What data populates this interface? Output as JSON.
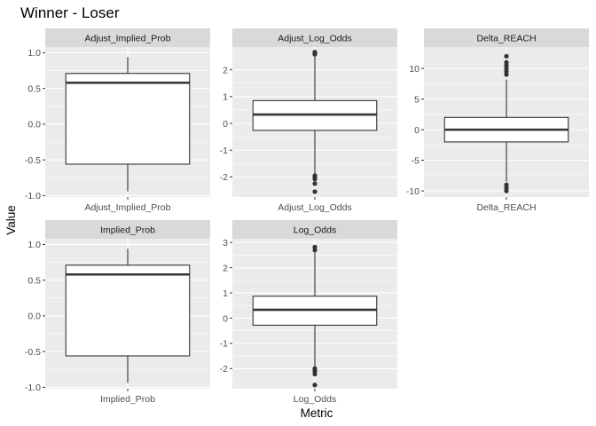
{
  "chart_data": {
    "type": "boxplot",
    "title": "Winner - Loser",
    "xlabel": "Metric",
    "ylabel": "Value",
    "layout": "facet-wrap",
    "panel_background": "#ebebeb",
    "strip_background": "#d9d9d9",
    "gridline_color": "#ffffff",
    "box_fill": "#ffffff",
    "box_stroke": "#333333",
    "panels": [
      {
        "strip": "Adjust_Implied_Prob",
        "category": "Adjust_Implied_Prob",
        "ylim": [
          -1.02,
          1.08
        ],
        "yticks": [
          -1.0,
          -0.5,
          0.0,
          0.5,
          1.0
        ],
        "yticklabels": [
          "-1.0",
          "-0.5",
          "0.0",
          "0.5",
          "1.0"
        ],
        "box": {
          "lower_whisker": -0.94,
          "q1": -0.56,
          "median": 0.58,
          "q3": 0.71,
          "upper_whisker": 0.94
        },
        "outliers": []
      },
      {
        "strip": "Adjust_Log_Odds",
        "category": "Adjust_Log_Odds",
        "ylim": [
          -2.75,
          2.85
        ],
        "yticks": [
          -2,
          -1,
          0,
          1,
          2
        ],
        "yticklabels": [
          "-2",
          "-1",
          "0",
          "1",
          "2"
        ],
        "box": {
          "lower_whisker": -1.9,
          "q1": -0.26,
          "median": 0.33,
          "q3": 0.85,
          "upper_whisker": 2.5
        },
        "outliers": [
          2.58,
          2.63,
          2.66,
          -1.95,
          -2.02,
          -2.08,
          -2.25,
          -2.55
        ]
      },
      {
        "strip": "Delta_REACH",
        "category": "Delta_REACH",
        "ylim": [
          -11,
          13.5
        ],
        "yticks": [
          -10,
          -5,
          0,
          5,
          10
        ],
        "yticklabels": [
          "-10",
          "-5",
          "0",
          "5",
          "10"
        ],
        "box": {
          "lower_whisker": -8.5,
          "q1": -2,
          "median": 0,
          "q3": 2,
          "upper_whisker": 8.2
        },
        "outliers": [
          9,
          9.5,
          10,
          10.5,
          11,
          12,
          -9,
          -9.5,
          -10
        ]
      },
      {
        "strip": "Implied_Prob",
        "category": "Implied_Prob",
        "ylim": [
          -1.02,
          1.08
        ],
        "yticks": [
          -1.0,
          -0.5,
          0.0,
          0.5,
          1.0
        ],
        "yticklabels": [
          "-1.0",
          "-0.5",
          "0.0",
          "0.5",
          "1.0"
        ],
        "box": {
          "lower_whisker": -0.94,
          "q1": -0.56,
          "median": 0.58,
          "q3": 0.71,
          "upper_whisker": 0.94
        },
        "outliers": []
      },
      {
        "strip": "Log_Odds",
        "category": "Log_Odds",
        "ylim": [
          -2.8,
          3.15
        ],
        "yticks": [
          -2,
          -1,
          0,
          1,
          2,
          3
        ],
        "yticklabels": [
          "-2",
          "-1",
          "0",
          "1",
          "2",
          "3"
        ],
        "box": {
          "lower_whisker": -1.95,
          "q1": -0.28,
          "median": 0.33,
          "q3": 0.87,
          "upper_whisker": 2.6
        },
        "outliers": [
          2.7,
          2.82,
          -2.0,
          -2.1,
          -2.22,
          -2.65
        ]
      }
    ]
  }
}
